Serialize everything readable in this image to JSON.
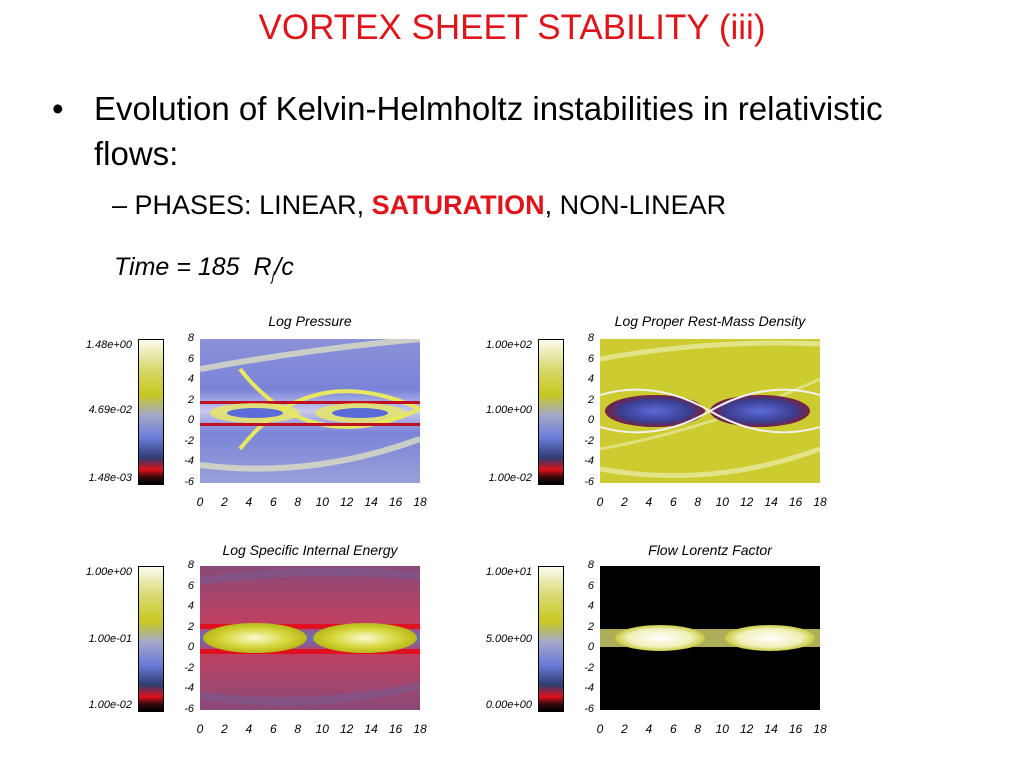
{
  "slide": {
    "title": "VORTEX SHEET STABILITY (iii)",
    "bullet1": "Evolution of Kelvin-Helmholtz instabilities in relativistic flows:",
    "bullet_symbol": "•",
    "bullet2_prefix": "– PHASES: LINEAR, ",
    "bullet2_highlight": "SATURATION",
    "bullet2_suffix": ", NON-LINEAR",
    "accent_color": "#e0151b"
  },
  "time": {
    "prefix": "Time =",
    "value": "185",
    "unit_main": "R",
    "unit_sub": "j",
    "unit_rest": "/c"
  },
  "axes": {
    "x_ticks": [
      "0",
      "2",
      "4",
      "6",
      "8",
      "10",
      "12",
      "14",
      "16",
      "18"
    ],
    "y_ticks": [
      "8",
      "6",
      "4",
      "2",
      "0",
      "-2",
      "-4",
      "-6"
    ]
  },
  "chart_data": [
    {
      "type": "heatmap",
      "title": "Log Pressure",
      "colorbar_labels": [
        "1.48e+00",
        "4.69e-02",
        "1.48e-03"
      ],
      "xlim": [
        0,
        18
      ],
      "ylim": [
        -6,
        8
      ]
    },
    {
      "type": "heatmap",
      "title": "Log Proper Rest-Mass Density",
      "colorbar_labels": [
        "1.00e+02",
        "1.00e+00",
        "1.00e-02"
      ],
      "xlim": [
        0,
        18
      ],
      "ylim": [
        -6,
        8
      ]
    },
    {
      "type": "heatmap",
      "title": "Log Specific Internal Energy",
      "colorbar_labels": [
        "1.00e+00",
        "1.00e-01",
        "1.00e-02"
      ],
      "xlim": [
        0,
        18
      ],
      "ylim": [
        -6,
        8
      ]
    },
    {
      "type": "heatmap",
      "title": "Flow Lorentz Factor",
      "colorbar_labels": [
        "1.00e+01",
        "5.00e+00",
        "0.00e+00"
      ],
      "xlim": [
        0,
        18
      ],
      "ylim": [
        -6,
        8
      ]
    }
  ]
}
